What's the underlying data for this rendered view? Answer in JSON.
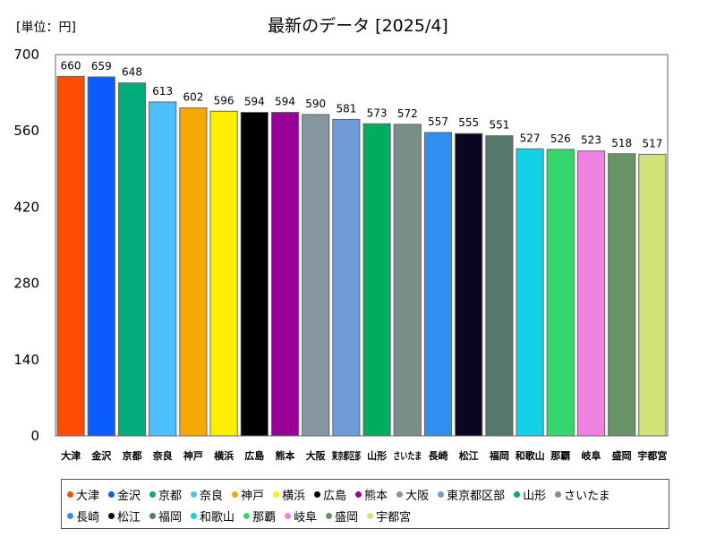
{
  "unit_label": "[単位：円]",
  "title": "最新のデータ [2025/4]",
  "chart_data": {
    "type": "bar",
    "title": "最新のデータ [2025/4]",
    "ylabel": "[単位：円]",
    "xlabel": "",
    "ylim": [
      0,
      700
    ],
    "yticks": [
      0,
      140,
      280,
      420,
      560,
      700
    ],
    "grid": false,
    "legend_position": "bottom",
    "categories": [
      "大津",
      "金沢",
      "京都",
      "奈良",
      "神戸",
      "横浜",
      "広島",
      "熊本",
      "大阪",
      "東京都区部",
      "山形",
      "さいたま",
      "長崎",
      "松江",
      "福岡",
      "和歌山",
      "那覇",
      "岐阜",
      "盛岡",
      "宇都宮"
    ],
    "values": [
      660,
      659,
      648,
      613,
      602,
      596,
      594,
      594,
      590,
      581,
      573,
      572,
      557,
      555,
      551,
      527,
      526,
      523,
      518,
      517
    ],
    "colors": [
      "#ff4c00",
      "#0a5cff",
      "#00ad7a",
      "#4cbfff",
      "#f5a800",
      "#ffee00",
      "#000000",
      "#990099",
      "#8596a1",
      "#6f9bd9",
      "#00ad5c",
      "#79908a",
      "#2f8fef",
      "#0a0520",
      "#56786a",
      "#13d1e6",
      "#34d66e",
      "#ee82e0",
      "#6a9468",
      "#d2e275"
    ]
  }
}
